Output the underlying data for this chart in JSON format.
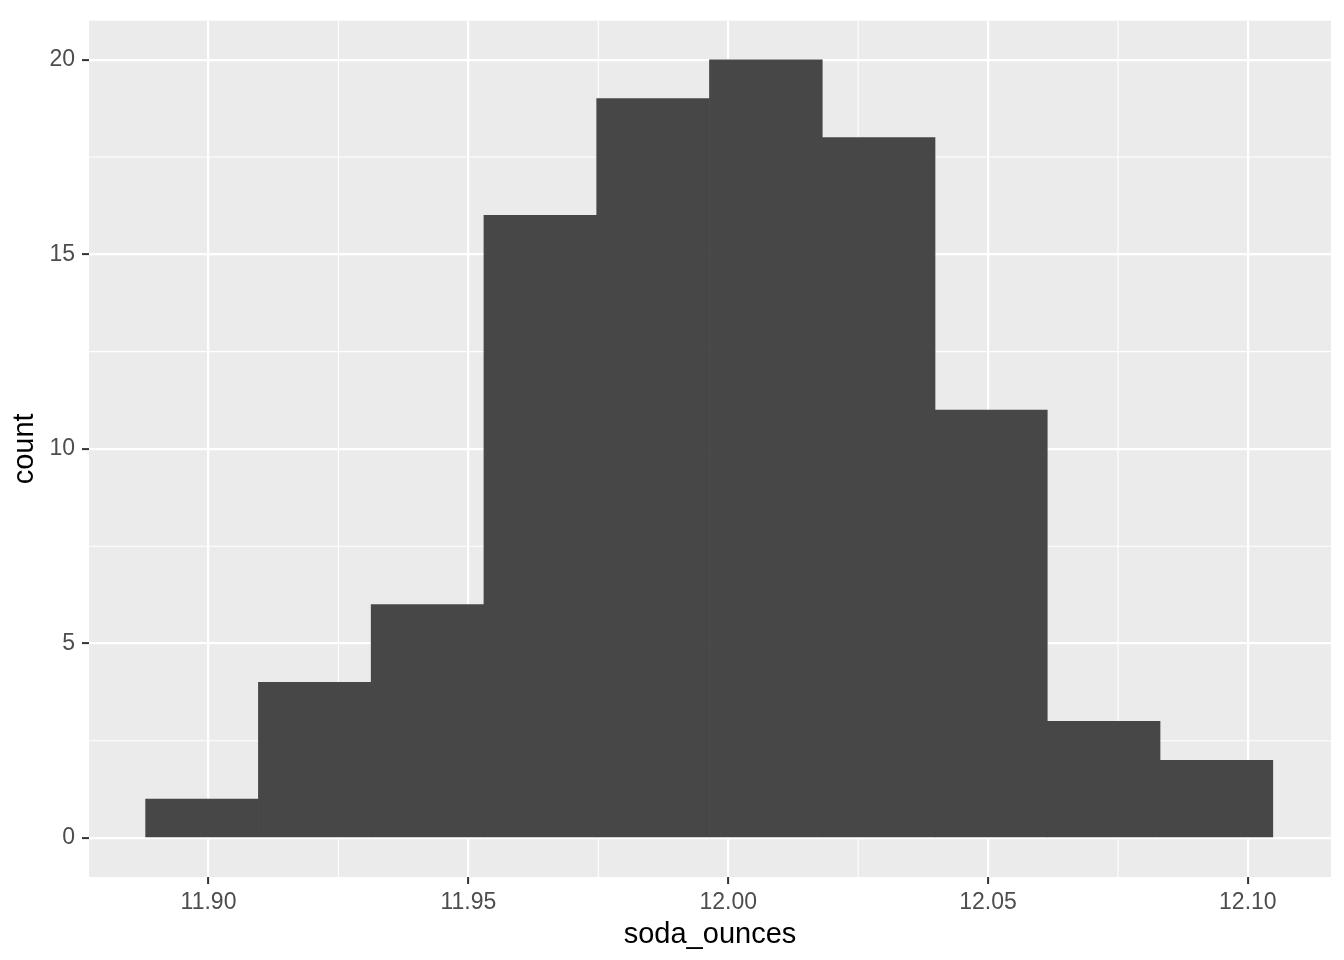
{
  "chart_data": {
    "type": "histogram",
    "xlabel": "soda_ounces",
    "ylabel": "count",
    "bins": [
      11.8879,
      11.9096,
      11.9313,
      11.953,
      11.9747,
      11.9964,
      12.0181,
      12.0398,
      12.0614,
      12.0831,
      12.1048
    ],
    "values": [
      1,
      4,
      6,
      16,
      19,
      20,
      18,
      11,
      3,
      2
    ],
    "color": "#474747",
    "xlim": [
      11.877,
      12.116
    ],
    "ylim": [
      -1,
      21
    ],
    "xticks": [
      {
        "value": 11.9,
        "label": "11.90"
      },
      11.95,
      {
        "value": 12,
        "label": "12.00"
      },
      12.05,
      {
        "value": 12.1,
        "label": "12.10"
      }
    ],
    "yticks": [
      0,
      5,
      10,
      15,
      20
    ],
    "grid": true
  }
}
